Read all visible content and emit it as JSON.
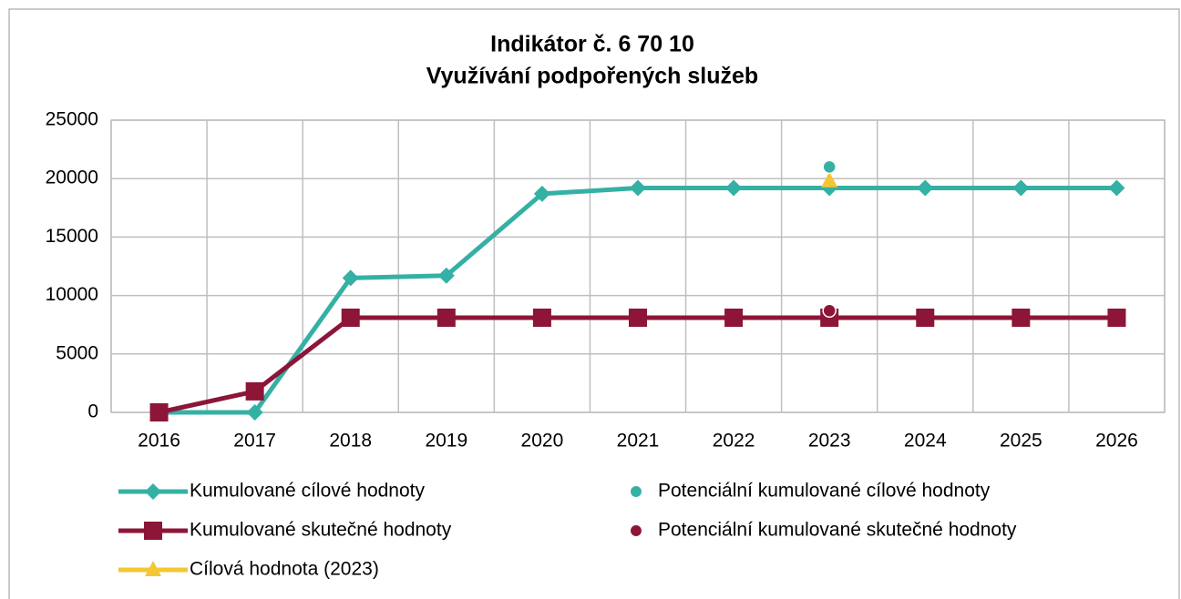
{
  "chart_data": {
    "type": "line",
    "title": "Indikátor č. 6 70 10",
    "subtitle": "Využívání podpořených služeb",
    "categories": [
      "2016",
      "2017",
      "2018",
      "2019",
      "2020",
      "2021",
      "2022",
      "2023",
      "2024",
      "2025",
      "2026"
    ],
    "series": [
      {
        "name": "Kumulované cílové hodnoty",
        "color": "#35b0a4",
        "marker": "diamond",
        "line": true,
        "values": [
          0,
          0,
          11500,
          11700,
          18700,
          19200,
          19200,
          19200,
          19200,
          19200,
          19200
        ]
      },
      {
        "name": "Kumulované skutečné hodnoty",
        "color": "#8c1538",
        "marker": "square",
        "line": true,
        "values": [
          0,
          1800,
          8100,
          8100,
          8100,
          8100,
          8100,
          8100,
          8100,
          8100,
          8100
        ]
      },
      {
        "name": "Cílová hodnota (2023)",
        "color": "#f2c733",
        "marker": "triangle",
        "line": true,
        "values": [
          null,
          null,
          null,
          null,
          null,
          null,
          null,
          19800,
          null,
          null,
          null
        ]
      },
      {
        "name": "Potenciální kumulované cílové hodnoty",
        "color": "#35b0a4",
        "marker": "circle",
        "line": false,
        "values": [
          null,
          null,
          null,
          null,
          null,
          null,
          null,
          21000,
          null,
          null,
          null
        ]
      },
      {
        "name": "Potenciální kumulované skutečné hodnoty",
        "color": "#8c1538",
        "marker": "circle",
        "line": false,
        "values": [
          null,
          null,
          null,
          null,
          null,
          null,
          null,
          8700,
          null,
          null,
          null
        ]
      }
    ],
    "ylim": [
      0,
      25000
    ],
    "yticks": [
      0,
      5000,
      10000,
      15000,
      20000,
      25000
    ],
    "grid": true
  }
}
